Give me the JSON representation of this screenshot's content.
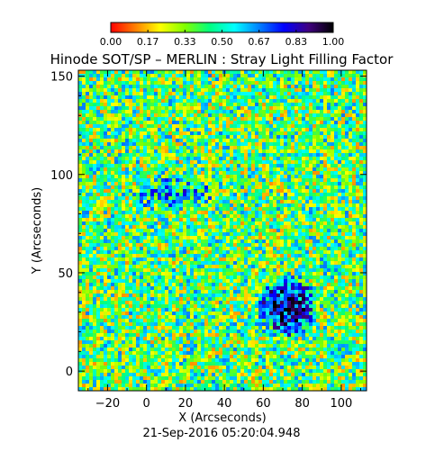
{
  "figure": {
    "title": "Hinode SOT/SP – MERLIN : Stray Light Filling Factor",
    "timestamp": "21-Sep-2016 05:20:04.948"
  },
  "colorbar": {
    "tick_labels": [
      "0.00",
      "0.17",
      "0.33",
      "0.50",
      "0.67",
      "0.83",
      "1.00"
    ],
    "colormap": "rainbow-reversed",
    "colors": [
      "#ff0000",
      "#ff8000",
      "#ffff00",
      "#80ff00",
      "#00ff80",
      "#00ffff",
      "#0080ff",
      "#0000ff",
      "#400080",
      "#000000"
    ]
  },
  "chart_data": {
    "type": "heatmap",
    "title": "Hinode SOT/SP – MERLIN : Stray Light Filling Factor",
    "xlabel": "X (Arcseconds)",
    "ylabel": "Y (Arcseconds)",
    "xlim": [
      -35,
      113
    ],
    "ylim": [
      -10,
      153
    ],
    "x_ticks": [
      -20,
      0,
      20,
      40,
      60,
      80,
      100
    ],
    "x_tick_labels": [
      "−20",
      "0",
      "20",
      "40",
      "60",
      "80",
      "100"
    ],
    "y_ticks": [
      0,
      50,
      100,
      150
    ],
    "y_tick_labels": [
      "0",
      "50",
      "100",
      "150"
    ],
    "value_range": [
      0.0,
      1.0
    ],
    "typical_value": 0.4,
    "high_value_regions": [
      {
        "x": [
          55,
          90
        ],
        "y": [
          15,
          50
        ],
        "value": 0.85
      },
      {
        "x": [
          -10,
          40
        ],
        "y": [
          80,
          100
        ],
        "value": 0.6
      },
      {
        "x": [
          -35,
          113
        ],
        "y": [
          -10,
          153
        ],
        "value": 0.5
      }
    ]
  }
}
